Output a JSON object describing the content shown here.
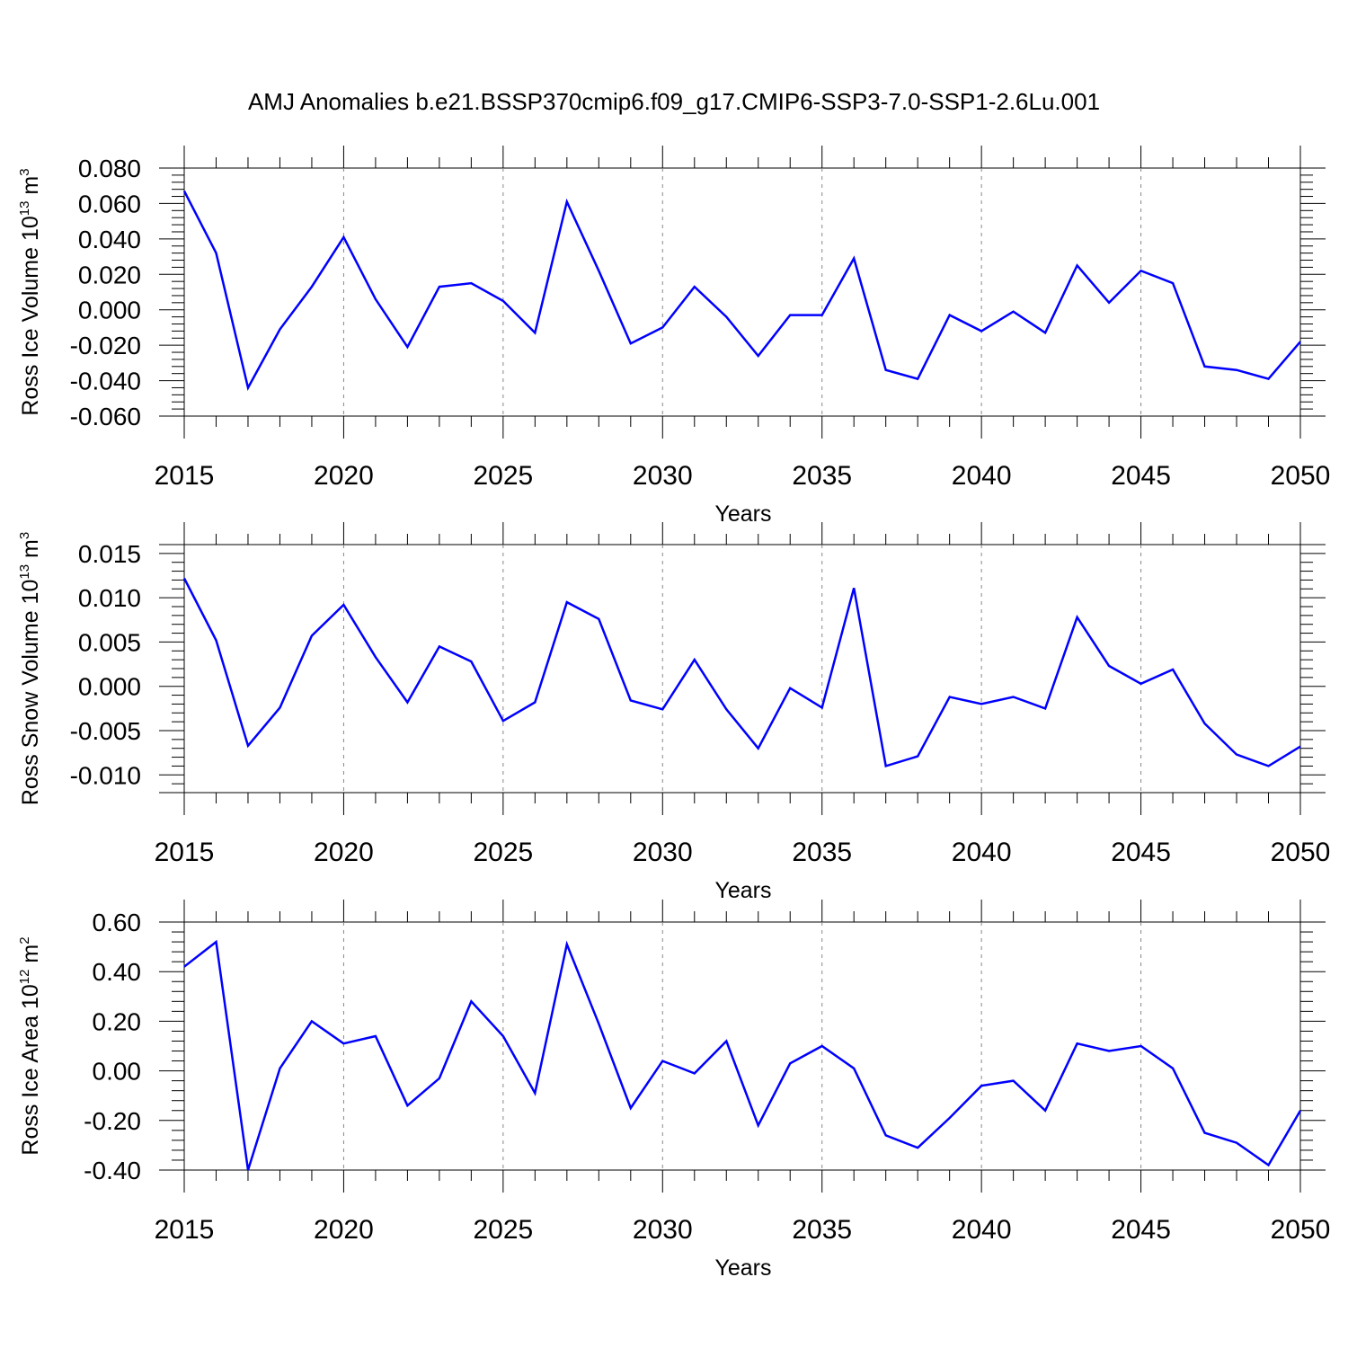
{
  "title": "AMJ Anomalies b.e21.BSSP370cmip6.f09_g17.CMIP6-SSP3-7.0-SSP1-2.6Lu.001",
  "line_color": "#0000ff",
  "chart_data": [
    {
      "type": "line",
      "xlabel": "Years",
      "ylabel_main": "Ross Ice Volume 10",
      "ylabel_exp": "13",
      "ylabel_unit": " m",
      "ylabel_unit_exp": "3",
      "xlim": [
        2015,
        2050
      ],
      "ylim": [
        -0.06,
        0.08
      ],
      "yticks": [
        -0.06,
        -0.04,
        -0.02,
        0.0,
        0.02,
        0.04,
        0.06,
        0.08
      ],
      "ytick_labels": [
        "-0.060",
        "-0.040",
        "-0.020",
        "0.000",
        "0.020",
        "0.040",
        "0.060",
        "0.080"
      ],
      "xticks": [
        2015,
        2020,
        2025,
        2030,
        2035,
        2040,
        2045,
        2050
      ],
      "xtick_labels": [
        "2015",
        "2020",
        "2025",
        "2030",
        "2035",
        "2040",
        "2045",
        "2050"
      ],
      "grid": "vertical dashed at major x ticks",
      "series": [
        {
          "x": [
            2015,
            2016,
            2017,
            2018,
            2019,
            2020,
            2021,
            2022,
            2023,
            2024,
            2025,
            2026,
            2027,
            2028,
            2029,
            2030,
            2031,
            2032,
            2033,
            2034,
            2035,
            2036,
            2037,
            2038,
            2039,
            2040,
            2041,
            2042,
            2043,
            2044,
            2045,
            2046,
            2047,
            2048,
            2049,
            2050
          ],
          "y": [
            0.067,
            0.032,
            -0.044,
            -0.011,
            0.013,
            0.041,
            0.006,
            -0.021,
            0.013,
            0.015,
            0.005,
            -0.013,
            0.061,
            0.022,
            -0.019,
            -0.01,
            0.013,
            -0.004,
            -0.026,
            -0.003,
            -0.003,
            0.029,
            -0.034,
            -0.039,
            -0.003,
            -0.012,
            -0.001,
            -0.013,
            0.025,
            0.004,
            0.022,
            0.015,
            -0.032,
            -0.034,
            -0.039,
            -0.018
          ]
        }
      ]
    },
    {
      "type": "line",
      "xlabel": "Years",
      "ylabel_main": "Ross Snow Volume 10",
      "ylabel_exp": "13",
      "ylabel_unit": " m",
      "ylabel_unit_exp": "3",
      "xlim": [
        2015,
        2050
      ],
      "ylim": [
        -0.012,
        0.016
      ],
      "yticks": [
        -0.01,
        -0.005,
        0.0,
        0.005,
        0.01,
        0.015
      ],
      "ytick_labels": [
        "-0.010",
        "-0.005",
        "0.000",
        "0.005",
        "0.010",
        "0.015"
      ],
      "xticks": [
        2015,
        2020,
        2025,
        2030,
        2035,
        2040,
        2045,
        2050
      ],
      "xtick_labels": [
        "2015",
        "2020",
        "2025",
        "2030",
        "2035",
        "2040",
        "2045",
        "2050"
      ],
      "grid": "vertical dashed at major x ticks",
      "series": [
        {
          "x": [
            2015,
            2016,
            2017,
            2018,
            2019,
            2020,
            2021,
            2022,
            2023,
            2024,
            2025,
            2026,
            2027,
            2028,
            2029,
            2030,
            2031,
            2032,
            2033,
            2034,
            2035,
            2036,
            2037,
            2038,
            2039,
            2040,
            2041,
            2042,
            2043,
            2044,
            2045,
            2046,
            2047,
            2048,
            2049,
            2050
          ],
          "y": [
            0.0122,
            0.0052,
            -0.0067,
            -0.0024,
            0.0057,
            0.0092,
            0.0033,
            -0.0018,
            0.0045,
            0.0028,
            -0.0039,
            -0.0018,
            0.0095,
            0.0076,
            -0.0016,
            -0.0026,
            0.003,
            -0.0026,
            -0.007,
            -0.0002,
            -0.0024,
            0.0111,
            -0.009,
            -0.0079,
            -0.0012,
            -0.002,
            -0.0012,
            -0.0025,
            0.0078,
            0.0023,
            0.0003,
            0.0019,
            -0.0042,
            -0.0077,
            -0.009,
            -0.0068
          ]
        }
      ]
    },
    {
      "type": "line",
      "xlabel": "Years",
      "ylabel_main": "Ross Ice Area 10",
      "ylabel_exp": "12",
      "ylabel_unit": " m",
      "ylabel_unit_exp": "2",
      "xlim": [
        2015,
        2050
      ],
      "ylim": [
        -0.4,
        0.6
      ],
      "yticks": [
        -0.4,
        -0.2,
        0.0,
        0.2,
        0.4,
        0.6
      ],
      "ytick_labels": [
        "-0.40",
        "-0.20",
        "0.00",
        "0.20",
        "0.40",
        "0.60"
      ],
      "xticks": [
        2015,
        2020,
        2025,
        2030,
        2035,
        2040,
        2045,
        2050
      ],
      "xtick_labels": [
        "2015",
        "2020",
        "2025",
        "2030",
        "2035",
        "2040",
        "2045",
        "2050"
      ],
      "grid": "vertical dashed at major x ticks",
      "series": [
        {
          "x": [
            2015,
            2016,
            2017,
            2018,
            2019,
            2020,
            2021,
            2022,
            2023,
            2024,
            2025,
            2026,
            2027,
            2028,
            2029,
            2030,
            2031,
            2032,
            2033,
            2034,
            2035,
            2036,
            2037,
            2038,
            2039,
            2040,
            2041,
            2042,
            2043,
            2044,
            2045,
            2046,
            2047,
            2048,
            2049,
            2050
          ],
          "y": [
            0.42,
            0.52,
            -0.4,
            0.01,
            0.2,
            0.11,
            0.14,
            -0.14,
            -0.03,
            0.28,
            0.14,
            -0.09,
            0.51,
            0.19,
            -0.15,
            0.04,
            -0.01,
            0.12,
            -0.22,
            0.03,
            0.1,
            0.01,
            -0.26,
            -0.31,
            -0.19,
            -0.06,
            -0.04,
            -0.16,
            0.11,
            0.08,
            0.1,
            0.01,
            -0.25,
            -0.29,
            -0.38,
            -0.16
          ]
        }
      ]
    }
  ]
}
